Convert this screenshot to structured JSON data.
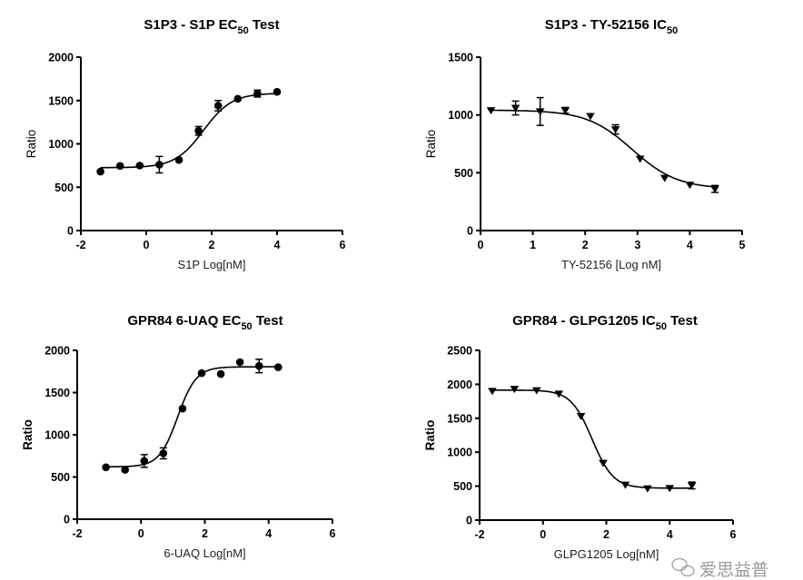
{
  "chart_data": [
    {
      "type": "scatter",
      "title_parts": [
        "S1P3 - S1P EC",
        "50",
        " Test"
      ],
      "xlabel": "S1P Log[nM]",
      "ylabel": "Ratio",
      "xlim": [
        -2,
        6
      ],
      "ylim": [
        0,
        2000
      ],
      "xticks": [
        -2,
        0,
        2,
        4,
        6
      ],
      "yticks": [
        0,
        500,
        1000,
        1500,
        2000
      ],
      "marker": "circle",
      "grid": false,
      "fit": {
        "model": "sigmoidal dose-response",
        "bottom": 725,
        "top": 1585,
        "logEC50": 1.75,
        "hill": 1.0
      },
      "points": [
        {
          "x": -1.4,
          "y": 680,
          "err": 0
        },
        {
          "x": -0.8,
          "y": 745,
          "err": 0
        },
        {
          "x": -0.2,
          "y": 750,
          "err": 0
        },
        {
          "x": 0.4,
          "y": 760,
          "err": 95
        },
        {
          "x": 1.0,
          "y": 815,
          "err": 0
        },
        {
          "x": 1.6,
          "y": 1150,
          "err": 50
        },
        {
          "x": 2.2,
          "y": 1440,
          "err": 60
        },
        {
          "x": 2.8,
          "y": 1520,
          "err": 0
        },
        {
          "x": 3.4,
          "y": 1580,
          "err": 40
        },
        {
          "x": 4.0,
          "y": 1600,
          "err": 0
        }
      ]
    },
    {
      "type": "scatter",
      "title_parts": [
        "S1P3 - TY-52156 IC",
        "50",
        ""
      ],
      "xlabel": "TY-52156  [Log nM]",
      "ylabel": "Ratio",
      "xlim": [
        0,
        5
      ],
      "ylim": [
        0,
        1500
      ],
      "xticks": [
        0,
        1,
        2,
        3,
        4,
        5
      ],
      "yticks": [
        0,
        500,
        1000,
        1500
      ],
      "marker": "triangle-down",
      "grid": false,
      "fit": {
        "model": "sigmoidal dose-response",
        "bottom": 360,
        "top": 1042,
        "logEC50": 2.9,
        "hill": -1.0
      },
      "points": [
        {
          "x": 0.2,
          "y": 1040,
          "err": 0
        },
        {
          "x": 0.67,
          "y": 1060,
          "err": 60
        },
        {
          "x": 1.14,
          "y": 1030,
          "err": 120
        },
        {
          "x": 1.62,
          "y": 1040,
          "err": 25
        },
        {
          "x": 2.1,
          "y": 990,
          "err": 0
        },
        {
          "x": 2.58,
          "y": 875,
          "err": 40
        },
        {
          "x": 3.05,
          "y": 620,
          "err": 0
        },
        {
          "x": 3.52,
          "y": 455,
          "err": 0
        },
        {
          "x": 4.0,
          "y": 395,
          "err": 0
        },
        {
          "x": 4.48,
          "y": 360,
          "err": 30
        }
      ]
    },
    {
      "type": "scatter",
      "title_parts": [
        "GPR84 6-UAQ EC",
        "50",
        " Test"
      ],
      "xlabel": "6-UAQ Log[nM]",
      "ylabel": "Ratio",
      "xlim": [
        -2,
        6
      ],
      "ylim": [
        0,
        2000
      ],
      "xticks": [
        -2,
        0,
        2,
        4,
        6
      ],
      "yticks": [
        0,
        500,
        1000,
        1500,
        2000
      ],
      "marker": "circle",
      "grid": false,
      "fit": {
        "model": "sigmoidal dose-response",
        "bottom": 620,
        "top": 1805,
        "logEC50": 1.15,
        "hill": 1.5
      },
      "points": [
        {
          "x": -1.1,
          "y": 615,
          "err": 0
        },
        {
          "x": -0.5,
          "y": 585,
          "err": 0
        },
        {
          "x": 0.1,
          "y": 690,
          "err": 75
        },
        {
          "x": 0.7,
          "y": 780,
          "err": 65
        },
        {
          "x": 1.3,
          "y": 1310,
          "err": 0
        },
        {
          "x": 1.9,
          "y": 1730,
          "err": 0
        },
        {
          "x": 2.5,
          "y": 1720,
          "err": 0
        },
        {
          "x": 3.1,
          "y": 1860,
          "err": 0
        },
        {
          "x": 3.7,
          "y": 1815,
          "err": 80
        },
        {
          "x": 4.3,
          "y": 1800,
          "err": 0
        }
      ]
    },
    {
      "type": "scatter",
      "title_parts": [
        "GPR84 - GLPG1205 IC",
        "50",
        " Test"
      ],
      "xlabel": "GLPG1205 Log[nM]",
      "ylabel": "Ratio",
      "xlim": [
        -2,
        6
      ],
      "ylim": [
        0,
        2500
      ],
      "xticks": [
        -2,
        0,
        2,
        4,
        6
      ],
      "yticks": [
        0,
        500,
        1000,
        1500,
        2000,
        2500
      ],
      "marker": "triangle-down",
      "grid": false,
      "fit": {
        "model": "sigmoidal dose-response",
        "bottom": 470,
        "top": 1915,
        "logEC50": 1.55,
        "hill": -1.3
      },
      "points": [
        {
          "x": -1.6,
          "y": 1900,
          "err": 0
        },
        {
          "x": -0.9,
          "y": 1930,
          "err": 0
        },
        {
          "x": -0.2,
          "y": 1910,
          "err": 0
        },
        {
          "x": 0.5,
          "y": 1860,
          "err": 0
        },
        {
          "x": 1.2,
          "y": 1530,
          "err": 0
        },
        {
          "x": 1.9,
          "y": 840,
          "err": 0
        },
        {
          "x": 2.6,
          "y": 520,
          "err": 0
        },
        {
          "x": 3.3,
          "y": 465,
          "err": 0
        },
        {
          "x": 4.0,
          "y": 470,
          "err": 0
        },
        {
          "x": 4.7,
          "y": 510,
          "err": 50
        }
      ]
    }
  ],
  "watermark": {
    "text": "爱思益普",
    "icon": "wechat-icon"
  }
}
